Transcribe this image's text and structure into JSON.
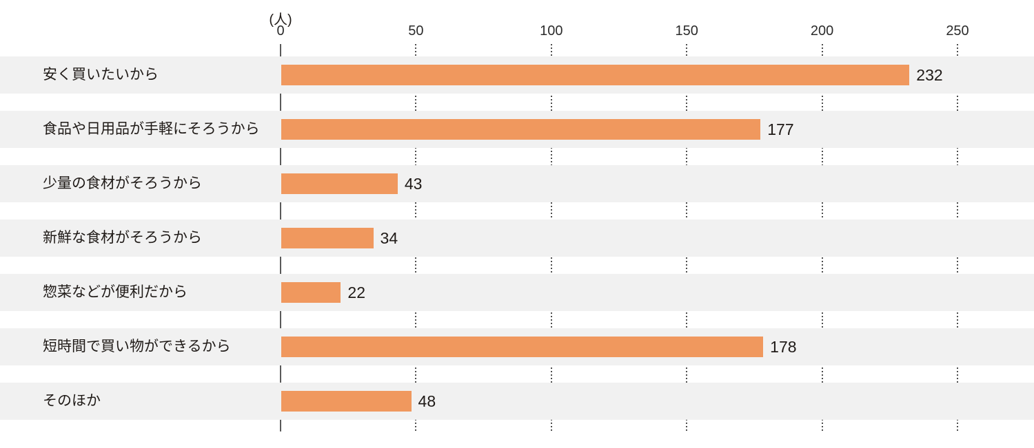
{
  "chart_data": {
    "type": "bar",
    "orientation": "horizontal",
    "title": "",
    "unit_label": "(人)",
    "xlabel": "",
    "ylabel": "",
    "categories": [
      "安く買いたいから",
      "食品や日用品が手軽にそろうから",
      "少量の食材がそろうから",
      "新鮮な食材がそろうから",
      "惣菜などが便利だから",
      "短時間で買い物ができるから",
      "そのほか"
    ],
    "values": [
      232,
      177,
      43,
      34,
      22,
      178,
      48
    ],
    "value_labels": [
      "232",
      "177",
      "43",
      "34",
      "22",
      "178",
      "48"
    ],
    "x_ticks": [
      0,
      50,
      100,
      150,
      200,
      250
    ],
    "x_tick_labels": [
      "0",
      "50",
      "100",
      "150",
      "200",
      "250"
    ],
    "xlim": [
      0,
      278
    ],
    "grid": "dotted-vertical-between-bands",
    "legend": "none",
    "colors": {
      "bar": "#f0985e",
      "row_band": "#f1f1f1",
      "background": "#ffffff",
      "axis_line": "#595959",
      "gridline": "#4c4c4c",
      "text": "#1f1a17"
    }
  }
}
